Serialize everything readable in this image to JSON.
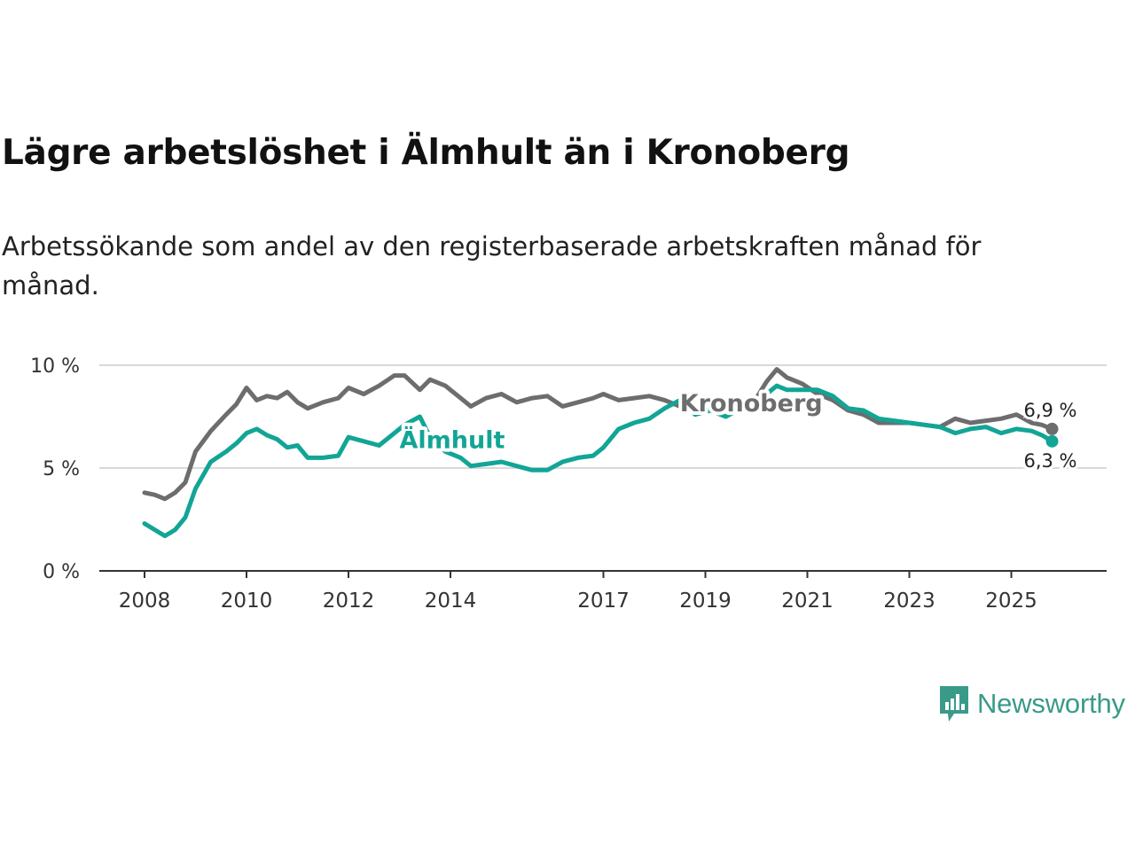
{
  "title": "Lägre arbetslöshet i Älmhult än i Kronoberg",
  "subtitle": "Arbetssökande som andel av den registerbaserade arbetskraften månad för månad.",
  "brand": {
    "name": "Newsworthy",
    "icon": "newsworthy-logo-icon"
  },
  "colors": {
    "almhult": "#12a596",
    "kronoberg": "#6d6d6f",
    "brand": "#3a9a8a"
  },
  "chart_data": {
    "type": "line",
    "title": "Lägre arbetslöshet i Älmhult än i Kronoberg",
    "xlabel": "",
    "ylabel": "",
    "xlim": [
      2008,
      2026
    ],
    "ylim": [
      0,
      10
    ],
    "x_ticks": [
      {
        "value": 2008,
        "label": "2008"
      },
      {
        "value": 2010,
        "label": "2010"
      },
      {
        "value": 2012,
        "label": "2012"
      },
      {
        "value": 2014,
        "label": "2014"
      },
      {
        "value": 2017,
        "label": "2017"
      },
      {
        "value": 2019,
        "label": "2019"
      },
      {
        "value": 2021,
        "label": "2021"
      },
      {
        "value": 2023,
        "label": "2023"
      },
      {
        "value": 2025,
        "label": "2025"
      }
    ],
    "y_ticks": [
      {
        "value": 0,
        "label": "0 %"
      },
      {
        "value": 5,
        "label": "5 %"
      },
      {
        "value": 10,
        "label": "10 %"
      }
    ],
    "grid": true,
    "series": [
      {
        "name": "Kronoberg",
        "color": "#6d6d6f",
        "x": [
          2008.0,
          2008.2,
          2008.4,
          2008.6,
          2008.8,
          2009.0,
          2009.3,
          2009.6,
          2009.8,
          2010.0,
          2010.2,
          2010.4,
          2010.6,
          2010.8,
          2011.0,
          2011.2,
          2011.5,
          2011.8,
          2012.0,
          2012.3,
          2012.6,
          2012.9,
          2013.1,
          2013.4,
          2013.6,
          2013.9,
          2014.2,
          2014.4,
          2014.7,
          2015.0,
          2015.3,
          2015.6,
          2015.9,
          2016.2,
          2016.5,
          2016.8,
          2017.0,
          2017.3,
          2017.6,
          2017.9,
          2018.2,
          2018.5,
          2018.8,
          2019.1,
          2019.4,
          2019.7,
          2020.0,
          2020.2,
          2020.4,
          2020.6,
          2020.9,
          2021.2,
          2021.5,
          2021.8,
          2022.1,
          2022.4,
          2022.7,
          2023.0,
          2023.3,
          2023.6,
          2023.9,
          2024.2,
          2024.5,
          2024.8,
          2025.1,
          2025.4,
          2025.6,
          2025.8
        ],
        "y": [
          3.8,
          3.7,
          3.5,
          3.8,
          4.3,
          5.8,
          6.8,
          7.6,
          8.1,
          8.9,
          8.3,
          8.5,
          8.4,
          8.7,
          8.2,
          7.9,
          8.2,
          8.4,
          8.9,
          8.6,
          9.0,
          9.5,
          9.5,
          8.8,
          9.3,
          9.0,
          8.4,
          8.0,
          8.4,
          8.6,
          8.2,
          8.4,
          8.5,
          8.0,
          8.2,
          8.4,
          8.6,
          8.3,
          8.4,
          8.5,
          8.3,
          8.0,
          7.8,
          8.0,
          7.8,
          8.0,
          8.4,
          9.2,
          9.8,
          9.4,
          9.1,
          8.6,
          8.3,
          7.8,
          7.6,
          7.2,
          7.2,
          7.2,
          7.1,
          7.0,
          7.4,
          7.2,
          7.3,
          7.4,
          7.6,
          7.2,
          7.1,
          6.9
        ],
        "end_label": "6,9 %",
        "label": "Kronoberg"
      },
      {
        "name": "Älmhult",
        "color": "#12a596",
        "x": [
          2008.0,
          2008.2,
          2008.4,
          2008.6,
          2008.8,
          2009.0,
          2009.3,
          2009.6,
          2009.8,
          2010.0,
          2010.2,
          2010.4,
          2010.6,
          2010.8,
          2011.0,
          2011.2,
          2011.5,
          2011.8,
          2012.0,
          2012.3,
          2012.6,
          2012.9,
          2013.1,
          2013.4,
          2013.6,
          2013.9,
          2014.2,
          2014.4,
          2014.7,
          2015.0,
          2015.3,
          2015.6,
          2015.9,
          2016.2,
          2016.5,
          2016.8,
          2017.0,
          2017.3,
          2017.6,
          2017.9,
          2018.2,
          2018.5,
          2018.8,
          2019.1,
          2019.4,
          2019.7,
          2020.0,
          2020.2,
          2020.4,
          2020.6,
          2020.9,
          2021.2,
          2021.5,
          2021.8,
          2022.1,
          2022.4,
          2022.7,
          2023.0,
          2023.3,
          2023.6,
          2023.9,
          2024.2,
          2024.5,
          2024.8,
          2025.1,
          2025.4,
          2025.6,
          2025.8
        ],
        "y": [
          2.3,
          2.0,
          1.7,
          2.0,
          2.6,
          4.0,
          5.3,
          5.8,
          6.2,
          6.7,
          6.9,
          6.6,
          6.4,
          6.0,
          6.1,
          5.5,
          5.5,
          5.6,
          6.5,
          6.3,
          6.1,
          6.7,
          7.1,
          7.5,
          6.5,
          5.8,
          5.5,
          5.1,
          5.2,
          5.3,
          5.1,
          4.9,
          4.9,
          5.3,
          5.5,
          5.6,
          6.0,
          6.9,
          7.2,
          7.4,
          7.9,
          8.3,
          7.6,
          7.8,
          7.5,
          7.9,
          8.3,
          8.6,
          9.0,
          8.8,
          8.8,
          8.8,
          8.5,
          7.9,
          7.8,
          7.4,
          7.3,
          7.2,
          7.1,
          7.0,
          6.7,
          6.9,
          7.0,
          6.7,
          6.9,
          6.8,
          6.6,
          6.3
        ],
        "end_label": "6,3 %",
        "label": "Älmhult"
      }
    ]
  }
}
